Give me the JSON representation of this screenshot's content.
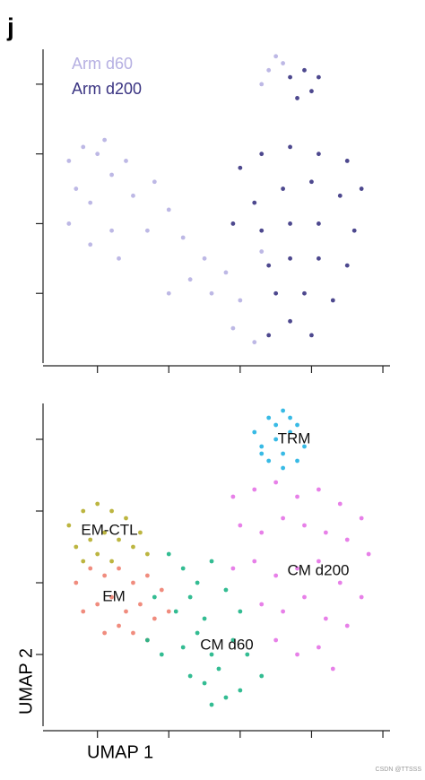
{
  "panel_label": "j",
  "watermark": "CSDN @TTSSS",
  "chart_data": [
    {
      "type": "scatter",
      "xlim": [
        0.2,
        5.1
      ],
      "ylim": [
        0,
        4.5
      ],
      "xticks": [
        1,
        2,
        3,
        4,
        5
      ],
      "yticks": [
        1,
        2,
        3,
        4
      ],
      "series": [
        {
          "name": "Arm d60",
          "color": "#b6b0e2",
          "x": [
            0.6,
            0.8,
            1.0,
            0.7,
            0.9,
            1.2,
            1.4,
            0.6,
            0.9,
            1.2,
            1.5,
            1.8,
            2.0,
            1.7,
            1.3,
            2.2,
            2.5,
            2.8,
            2.6,
            3.0,
            2.9,
            3.2,
            2.3,
            2.0,
            3.3,
            3.5,
            3.4,
            3.6,
            3.3,
            1.1
          ],
          "y": [
            2.9,
            3.1,
            3.0,
            2.5,
            2.3,
            2.7,
            2.9,
            2.0,
            1.7,
            1.9,
            2.4,
            2.6,
            2.2,
            1.9,
            1.5,
            1.8,
            1.5,
            1.3,
            1.0,
            0.9,
            0.5,
            0.3,
            1.2,
            1.0,
            1.6,
            4.4,
            4.2,
            4.3,
            4.0,
            3.2
          ]
        },
        {
          "name": "Arm d200",
          "color": "#3a3482",
          "x": [
            3.0,
            3.3,
            3.7,
            4.1,
            4.5,
            4.7,
            4.4,
            4.0,
            3.6,
            3.2,
            2.9,
            3.3,
            3.7,
            4.1,
            4.6,
            4.5,
            4.1,
            3.7,
            3.4,
            3.5,
            3.9,
            4.3,
            3.7,
            3.4,
            4.0,
            3.7,
            3.9,
            4.0,
            3.8,
            4.1
          ],
          "y": [
            2.8,
            3.0,
            3.1,
            3.0,
            2.9,
            2.5,
            2.4,
            2.6,
            2.5,
            2.3,
            2.0,
            1.9,
            2.0,
            2.0,
            1.9,
            1.4,
            1.5,
            1.5,
            1.4,
            1.0,
            1.0,
            0.9,
            0.6,
            0.4,
            0.4,
            4.1,
            4.2,
            3.9,
            3.8,
            4.1
          ]
        }
      ]
    },
    {
      "type": "scatter",
      "x_label": "UMAP 1",
      "y_label": "UMAP 2",
      "xlim": [
        0.2,
        5.1
      ],
      "ylim": [
        0,
        4.5
      ],
      "xticks": [
        1,
        2,
        3,
        4,
        5
      ],
      "yticks": [
        1,
        2,
        3,
        4
      ],
      "series": [
        {
          "name": "TRM",
          "color": "#22b3e2",
          "x": [
            3.2,
            3.4,
            3.6,
            3.8,
            3.3,
            3.5,
            3.7,
            3.9,
            3.4,
            3.6,
            3.8,
            3.5,
            3.7,
            3.3,
            3.6
          ],
          "y": [
            4.1,
            4.3,
            4.4,
            4.2,
            3.9,
            4.0,
            4.1,
            3.9,
            3.7,
            3.8,
            3.7,
            4.2,
            4.3,
            3.8,
            3.6
          ]
        },
        {
          "name": "EM-CTL",
          "color": "#b5ad2b",
          "x": [
            0.6,
            0.8,
            1.0,
            1.2,
            1.4,
            1.6,
            0.7,
            0.9,
            1.1,
            1.3,
            1.5,
            0.8,
            1.0,
            1.2,
            1.7
          ],
          "y": [
            2.8,
            3.0,
            3.1,
            3.0,
            2.9,
            2.7,
            2.5,
            2.6,
            2.7,
            2.6,
            2.5,
            2.3,
            2.4,
            2.3,
            2.4
          ]
        },
        {
          "name": "EM",
          "color": "#ee8070",
          "x": [
            0.7,
            0.9,
            1.1,
            1.3,
            1.5,
            1.7,
            1.9,
            0.8,
            1.0,
            1.2,
            1.4,
            1.6,
            1.8,
            2.0,
            1.1,
            1.3,
            1.5,
            1.7
          ],
          "y": [
            2.0,
            2.2,
            2.1,
            2.2,
            2.0,
            2.1,
            1.9,
            1.6,
            1.7,
            1.8,
            1.6,
            1.7,
            1.5,
            1.6,
            1.3,
            1.4,
            1.3,
            1.2
          ]
        },
        {
          "name": "CM d60",
          "color": "#1db586",
          "x": [
            2.0,
            2.2,
            2.4,
            2.6,
            1.8,
            2.1,
            2.3,
            2.5,
            2.8,
            3.0,
            1.7,
            1.9,
            2.2,
            2.4,
            2.6,
            2.9,
            3.1,
            2.3,
            2.5,
            2.7,
            3.0,
            3.3,
            2.6,
            2.8
          ],
          "y": [
            2.4,
            2.2,
            2.0,
            2.3,
            1.8,
            1.6,
            1.8,
            1.5,
            1.9,
            1.6,
            1.2,
            1.0,
            1.1,
            1.3,
            1.0,
            1.2,
            1.0,
            0.7,
            0.6,
            0.8,
            0.5,
            0.7,
            0.3,
            0.4
          ]
        },
        {
          "name": "CM d200",
          "color": "#e472e6",
          "x": [
            2.9,
            3.2,
            3.5,
            3.8,
            4.1,
            4.4,
            4.7,
            3.0,
            3.3,
            3.6,
            3.9,
            4.2,
            4.5,
            4.8,
            2.9,
            3.2,
            3.5,
            3.8,
            4.1,
            4.4,
            4.7,
            3.3,
            3.6,
            3.9,
            4.2,
            4.5,
            3.5,
            3.8,
            4.1,
            4.3
          ],
          "y": [
            3.2,
            3.3,
            3.4,
            3.2,
            3.3,
            3.1,
            2.9,
            2.8,
            2.7,
            2.9,
            2.8,
            2.7,
            2.6,
            2.4,
            2.2,
            2.3,
            2.1,
            2.2,
            2.3,
            2.0,
            1.8,
            1.7,
            1.6,
            1.8,
            1.5,
            1.4,
            1.2,
            1.0,
            1.1,
            0.8
          ]
        }
      ]
    }
  ]
}
